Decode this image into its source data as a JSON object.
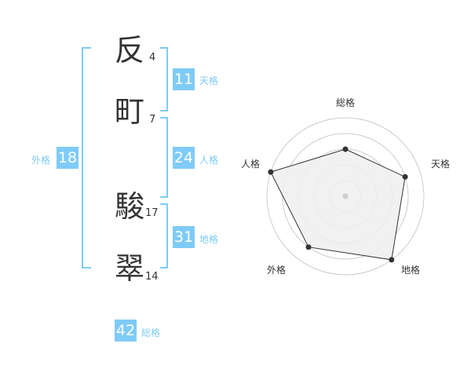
{
  "name": {
    "chars": [
      {
        "char": "反",
        "strokes": "4"
      },
      {
        "char": "町",
        "strokes": "7"
      },
      {
        "char": "駿",
        "strokes": "17"
      },
      {
        "char": "翠",
        "strokes": "14"
      }
    ]
  },
  "fortunes": {
    "tenkaku": {
      "value": "11",
      "label": "天格"
    },
    "jinkaku": {
      "value": "24",
      "label": "人格"
    },
    "chikaku": {
      "value": "31",
      "label": "地格"
    },
    "gaikaku": {
      "value": "18",
      "label": "外格"
    },
    "soukaku": {
      "value": "42",
      "label": "総格"
    }
  },
  "chart_data": {
    "type": "radar",
    "axes": [
      "総格",
      "天格",
      "地格",
      "外格",
      "人格"
    ],
    "values": [
      3,
      4,
      5,
      4,
      5
    ],
    "range": [
      0,
      5
    ],
    "rings": 5,
    "colors": {
      "fill": "#efefef",
      "line": "#333333",
      "grid": "#cccccc"
    }
  },
  "colors": {
    "accent": "#7fcbf7",
    "text": "#333333"
  }
}
